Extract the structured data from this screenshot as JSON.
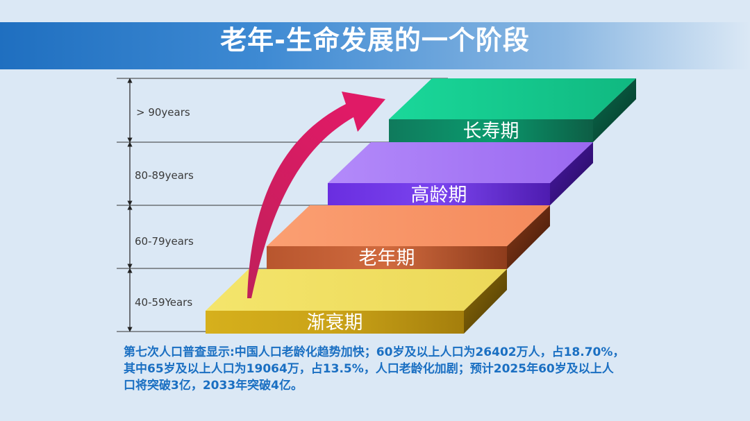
{
  "title": "老年-生命发展的一个阶段",
  "age_ranges": [
    "> 90years",
    "80-89years",
    "60-79years",
    "40-59Years"
  ],
  "stages": [
    "长寿期",
    "高龄期",
    "老年期",
    "渐衰期"
  ],
  "summary_lines": [
    "第七次人口普查显示:中国人口老龄化趋势加快；60岁及以上人口为26402万人，占18.70%，",
    "其中65岁及以上人口为19064万，占13.5%，人口老龄化加剧；预计2025年60岁及以上人",
    "口将突破3亿，2033年突破4亿。"
  ],
  "colors": {
    "stage_long_life": "#19c98e",
    "stage_advanced": "#a879f5",
    "stage_elderly": "#f7986a",
    "stage_decline": "#f0df62",
    "arrow": "#cf1a62",
    "summary_text": "#1a6fc2"
  }
}
